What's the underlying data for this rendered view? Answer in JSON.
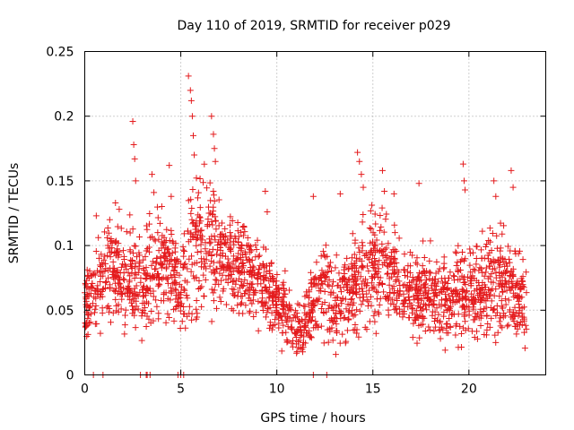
{
  "chart_data": {
    "type": "scatter",
    "title": "Day 110 of 2019, SRMTID for receiver p029",
    "xlabel": "GPS time / hours",
    "ylabel": "SRMTID / TECUs",
    "xlim": [
      0,
      24
    ],
    "ylim": [
      0,
      0.25
    ],
    "x_ticks": [
      0,
      5,
      10,
      15,
      20
    ],
    "x_tick_labels": [
      "0",
      "5",
      "10",
      "15",
      "20"
    ],
    "y_ticks": [
      0,
      0.05,
      0.1,
      0.15,
      0.2,
      0.25
    ],
    "y_tick_labels": [
      "0",
      "0.05",
      "0.1",
      "0.15",
      "0.2",
      "0.25"
    ],
    "grid": true,
    "marker": "plus",
    "color": "#e41a1c",
    "profile_hours": [
      0,
      0.5,
      1,
      1.5,
      2,
      2.5,
      3,
      3.5,
      4,
      4.5,
      5,
      5.5,
      6,
      6.5,
      7,
      7.5,
      8,
      8.5,
      9,
      9.5,
      10,
      10.5,
      11,
      11.5,
      12,
      12.5,
      13,
      13.5,
      14,
      14.5,
      15,
      15.5,
      16,
      16.5,
      17,
      17.5,
      18,
      18.5,
      19,
      19.5,
      20,
      20.5,
      21,
      21.5,
      22,
      22.5,
      23
    ],
    "profile_mean_tecu": [
      0.05,
      0.065,
      0.075,
      0.08,
      0.075,
      0.08,
      0.065,
      0.08,
      0.085,
      0.08,
      0.06,
      0.1,
      0.1,
      0.11,
      0.09,
      0.085,
      0.08,
      0.075,
      0.07,
      0.07,
      0.055,
      0.05,
      0.035,
      0.04,
      0.06,
      0.065,
      0.055,
      0.06,
      0.07,
      0.085,
      0.08,
      0.085,
      0.08,
      0.06,
      0.06,
      0.065,
      0.065,
      0.06,
      0.055,
      0.065,
      0.065,
      0.06,
      0.075,
      0.075,
      0.07,
      0.06,
      0.055
    ],
    "profile_spread_tecu": [
      0.015,
      0.02,
      0.022,
      0.022,
      0.025,
      0.025,
      0.022,
      0.025,
      0.025,
      0.022,
      0.02,
      0.035,
      0.035,
      0.035,
      0.025,
      0.022,
      0.022,
      0.022,
      0.02,
      0.02,
      0.018,
      0.015,
      0.012,
      0.015,
      0.02,
      0.022,
      0.02,
      0.022,
      0.025,
      0.03,
      0.028,
      0.028,
      0.025,
      0.02,
      0.02,
      0.022,
      0.022,
      0.02,
      0.02,
      0.022,
      0.022,
      0.022,
      0.025,
      0.025,
      0.025,
      0.02,
      0.018
    ],
    "peaks": [
      {
        "x": 0.6,
        "y": 0.123
      },
      {
        "x": 1.3,
        "y": 0.12
      },
      {
        "x": 1.6,
        "y": 0.133
      },
      {
        "x": 2.5,
        "y": 0.196
      },
      {
        "x": 2.55,
        "y": 0.178
      },
      {
        "x": 2.6,
        "y": 0.167
      },
      {
        "x": 2.65,
        "y": 0.15
      },
      {
        "x": 3.5,
        "y": 0.155
      },
      {
        "x": 3.6,
        "y": 0.141
      },
      {
        "x": 4.4,
        "y": 0.162
      },
      {
        "x": 4.5,
        "y": 0.138
      },
      {
        "x": 5.4,
        "y": 0.231
      },
      {
        "x": 5.5,
        "y": 0.22
      },
      {
        "x": 5.55,
        "y": 0.212
      },
      {
        "x": 5.6,
        "y": 0.2
      },
      {
        "x": 5.65,
        "y": 0.185
      },
      {
        "x": 5.7,
        "y": 0.17
      },
      {
        "x": 6.6,
        "y": 0.2
      },
      {
        "x": 6.7,
        "y": 0.186
      },
      {
        "x": 6.75,
        "y": 0.175
      },
      {
        "x": 6.8,
        "y": 0.165
      },
      {
        "x": 9.4,
        "y": 0.142
      },
      {
        "x": 9.5,
        "y": 0.126
      },
      {
        "x": 11.9,
        "y": 0.138
      },
      {
        "x": 13.3,
        "y": 0.14
      },
      {
        "x": 14.2,
        "y": 0.172
      },
      {
        "x": 14.3,
        "y": 0.165
      },
      {
        "x": 14.4,
        "y": 0.155
      },
      {
        "x": 14.5,
        "y": 0.145
      },
      {
        "x": 15.5,
        "y": 0.158
      },
      {
        "x": 15.6,
        "y": 0.142
      },
      {
        "x": 16.1,
        "y": 0.14
      },
      {
        "x": 17.4,
        "y": 0.148
      },
      {
        "x": 19.7,
        "y": 0.163
      },
      {
        "x": 19.75,
        "y": 0.15
      },
      {
        "x": 19.8,
        "y": 0.143
      },
      {
        "x": 21.3,
        "y": 0.15
      },
      {
        "x": 21.4,
        "y": 0.138
      },
      {
        "x": 22.2,
        "y": 0.158
      },
      {
        "x": 22.3,
        "y": 0.145
      }
    ],
    "zero_value_hours": [
      0.45,
      0.95,
      2.9,
      3.2,
      3.25,
      3.4,
      4.85,
      5.0,
      5.15,
      11.9,
      12.6
    ]
  }
}
